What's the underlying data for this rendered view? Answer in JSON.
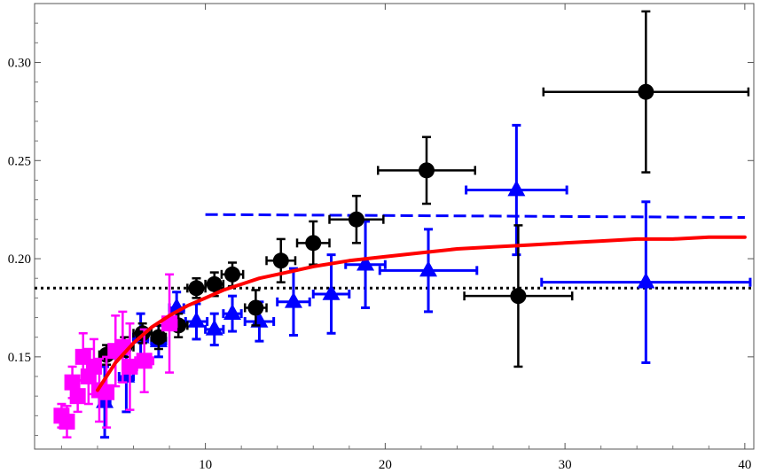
{
  "chart_data": {
    "type": "scatter",
    "title": "",
    "xlabel": "",
    "ylabel": "",
    "xlim": [
      0.5,
      40.5
    ],
    "ylim": [
      0.103,
      0.33
    ],
    "grid": false,
    "legend": "none",
    "x_ticks": [
      10,
      20,
      30,
      40
    ],
    "x_tick_labels": [
      "10",
      "20",
      "30",
      "40"
    ],
    "y_ticks": [
      0.15,
      0.2,
      0.25,
      0.3
    ],
    "y_tick_labels": [
      "0.15",
      "0.20",
      "0.25",
      "0.30"
    ],
    "series": [
      {
        "marker": "circle",
        "color": "#000000",
        "points": [
          {
            "x": 4.5,
            "y": 0.151,
            "xerr": 0.4,
            "yerr": 0.005
          },
          {
            "x": 5.5,
            "y": 0.155,
            "xerr": 0.5,
            "yerr": 0.005
          },
          {
            "x": 6.5,
            "y": 0.162,
            "xerr": 0.5,
            "yerr": 0.005
          },
          {
            "x": 7.4,
            "y": 0.16,
            "xerr": 0.4,
            "yerr": 0.006
          },
          {
            "x": 8.5,
            "y": 0.166,
            "xerr": 0.5,
            "yerr": 0.006
          },
          {
            "x": 9.5,
            "y": 0.185,
            "xerr": 0.5,
            "yerr": 0.005
          },
          {
            "x": 10.5,
            "y": 0.187,
            "xerr": 0.5,
            "yerr": 0.006
          },
          {
            "x": 11.5,
            "y": 0.192,
            "xerr": 0.6,
            "yerr": 0.006
          },
          {
            "x": 12.8,
            "y": 0.175,
            "xerr": 0.6,
            "yerr": 0.009
          },
          {
            "x": 14.2,
            "y": 0.199,
            "xerr": 0.8,
            "yerr": 0.011
          },
          {
            "x": 16.0,
            "y": 0.208,
            "xerr": 0.9,
            "yerr": 0.011
          },
          {
            "x": 18.4,
            "y": 0.22,
            "xerr": 1.5,
            "yerr": 0.012
          },
          {
            "x": 22.3,
            "y": 0.245,
            "xerr": 2.7,
            "yerr": 0.017
          },
          {
            "x": 27.4,
            "y": 0.181,
            "xerr": 3.0,
            "yerr": 0.036
          },
          {
            "x": 34.5,
            "y": 0.285,
            "xerr": 5.7,
            "yerr": 0.041
          }
        ]
      },
      {
        "marker": "triangle",
        "color": "#0000ff",
        "points": [
          {
            "x": 4.4,
            "y": 0.127,
            "xerr": 0.3,
            "yerr": 0.018
          },
          {
            "x": 5.6,
            "y": 0.14,
            "xerr": 0.4,
            "yerr": 0.018
          },
          {
            "x": 6.4,
            "y": 0.16,
            "xerr": 0.4,
            "yerr": 0.012
          },
          {
            "x": 7.4,
            "y": 0.158,
            "xerr": 0.4,
            "yerr": 0.008
          },
          {
            "x": 8.4,
            "y": 0.175,
            "xerr": 0.4,
            "yerr": 0.008
          },
          {
            "x": 9.5,
            "y": 0.168,
            "xerr": 0.6,
            "yerr": 0.009
          },
          {
            "x": 10.5,
            "y": 0.164,
            "xerr": 0.5,
            "yerr": 0.008
          },
          {
            "x": 11.5,
            "y": 0.172,
            "xerr": 0.5,
            "yerr": 0.009
          },
          {
            "x": 13.0,
            "y": 0.168,
            "xerr": 0.8,
            "yerr": 0.01
          },
          {
            "x": 14.9,
            "y": 0.178,
            "xerr": 0.9,
            "yerr": 0.017
          },
          {
            "x": 17.0,
            "y": 0.182,
            "xerr": 1.0,
            "yerr": 0.02
          },
          {
            "x": 18.9,
            "y": 0.197,
            "xerr": 1.1,
            "yerr": 0.022
          },
          {
            "x": 22.4,
            "y": 0.194,
            "xerr": 2.7,
            "yerr": 0.021
          },
          {
            "x": 27.3,
            "y": 0.235,
            "xerr": 2.8,
            "yerr": 0.033
          },
          {
            "x": 34.5,
            "y": 0.188,
            "xerr": 5.8,
            "yerr": 0.041
          }
        ]
      },
      {
        "marker": "square",
        "color": "#ff00ff",
        "points": [
          {
            "x": 2.0,
            "y": 0.12,
            "xerr": 0.3,
            "yerr": 0.006
          },
          {
            "x": 2.3,
            "y": 0.117,
            "xerr": 0.3,
            "yerr": 0.008
          },
          {
            "x": 2.6,
            "y": 0.137,
            "xerr": 0.3,
            "yerr": 0.008
          },
          {
            "x": 2.9,
            "y": 0.13,
            "xerr": 0.3,
            "yerr": 0.008
          },
          {
            "x": 3.2,
            "y": 0.15,
            "xerr": 0.3,
            "yerr": 0.012
          },
          {
            "x": 3.5,
            "y": 0.14,
            "xerr": 0.3,
            "yerr": 0.014
          },
          {
            "x": 3.8,
            "y": 0.145,
            "xerr": 0.3,
            "yerr": 0.014
          },
          {
            "x": 4.1,
            "y": 0.133,
            "xerr": 0.3,
            "yerr": 0.016
          },
          {
            "x": 4.5,
            "y": 0.132,
            "xerr": 0.3,
            "yerr": 0.018
          },
          {
            "x": 5.0,
            "y": 0.153,
            "xerr": 0.3,
            "yerr": 0.018
          },
          {
            "x": 5.4,
            "y": 0.155,
            "xerr": 0.3,
            "yerr": 0.018
          },
          {
            "x": 5.8,
            "y": 0.145,
            "xerr": 0.4,
            "yerr": 0.022
          },
          {
            "x": 6.6,
            "y": 0.148,
            "xerr": 0.5,
            "yerr": 0.016
          },
          {
            "x": 8.0,
            "y": 0.167,
            "xerr": 0.4,
            "yerr": 0.025
          }
        ]
      }
    ],
    "lines": [
      {
        "style": "solid",
        "color": "#ff0000",
        "points": [
          [
            4.0,
            0.133
          ],
          [
            4.5,
            0.14
          ],
          [
            5,
            0.147
          ],
          [
            5.5,
            0.152
          ],
          [
            6,
            0.157
          ],
          [
            6.5,
            0.161
          ],
          [
            7,
            0.165
          ],
          [
            8,
            0.171
          ],
          [
            9,
            0.176
          ],
          [
            10,
            0.18
          ],
          [
            11,
            0.184
          ],
          [
            12,
            0.187
          ],
          [
            13,
            0.19
          ],
          [
            14,
            0.192
          ],
          [
            15,
            0.194
          ],
          [
            16,
            0.196
          ],
          [
            18,
            0.199
          ],
          [
            20,
            0.201
          ],
          [
            22,
            0.203
          ],
          [
            24,
            0.205
          ],
          [
            26,
            0.206
          ],
          [
            28,
            0.207
          ],
          [
            30,
            0.208
          ],
          [
            32,
            0.209
          ],
          [
            34,
            0.21
          ],
          [
            36,
            0.21
          ],
          [
            38,
            0.211
          ],
          [
            40,
            0.211
          ]
        ]
      },
      {
        "style": "dashed",
        "color": "#0000ff",
        "points": [
          [
            10,
            0.2225
          ],
          [
            40,
            0.221
          ]
        ]
      },
      {
        "style": "dotted",
        "color": "#000000",
        "points": [
          [
            0.5,
            0.185
          ],
          [
            40.5,
            0.185
          ]
        ]
      }
    ]
  }
}
